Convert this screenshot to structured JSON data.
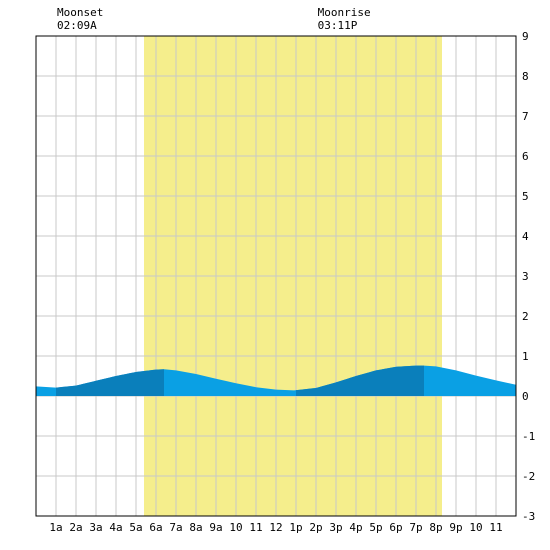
{
  "chart_data": {
    "type": "area",
    "annotations": [
      {
        "label": "Moonset",
        "time": "02:09A",
        "hour": 2.15
      },
      {
        "label": "Moonrise",
        "time": "03:11P",
        "hour": 15.18
      }
    ],
    "daylight": {
      "start_hour": 5.4,
      "end_hour": 20.3,
      "color": "#f5ee8c"
    },
    "x_tick_labels": [
      "1a",
      "2a",
      "3a",
      "4a",
      "5a",
      "6a",
      "7a",
      "8a",
      "9a",
      "10",
      "11",
      "12",
      "1p",
      "2p",
      "3p",
      "4p",
      "5p",
      "6p",
      "7p",
      "8p",
      "9p",
      "10",
      "11"
    ],
    "xlim": [
      0,
      24
    ],
    "ylim": [
      -3,
      9
    ],
    "y_ticks": [
      -3,
      -2,
      -1,
      0,
      1,
      2,
      3,
      4,
      5,
      6,
      7,
      8,
      9
    ],
    "grid": true,
    "series": [
      {
        "x": [
          0,
          1,
          2,
          3,
          4,
          5,
          6,
          6.4,
          7,
          8,
          9,
          10,
          11,
          12,
          12.9,
          14,
          15,
          16,
          17,
          18,
          19,
          19.4,
          20,
          21,
          22,
          23,
          24
        ],
        "values": [
          0.24,
          0.21,
          0.26,
          0.38,
          0.5,
          0.6,
          0.66,
          0.67,
          0.64,
          0.55,
          0.43,
          0.32,
          0.22,
          0.16,
          0.14,
          0.2,
          0.34,
          0.5,
          0.64,
          0.73,
          0.76,
          0.76,
          0.74,
          0.64,
          0.51,
          0.39,
          0.28
        ]
      }
    ],
    "shade_bands": [
      {
        "from": 1,
        "to": 6.4,
        "color": "#0a7fbb"
      },
      {
        "from": 13,
        "to": 19.4,
        "color": "#0a7fbb"
      }
    ],
    "fill_color": "#0aa0e4"
  }
}
